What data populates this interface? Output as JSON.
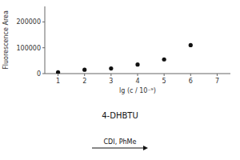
{
  "chart_data": {
    "type": "scatter",
    "x": [
      1,
      2,
      3,
      4,
      5,
      6
    ],
    "values": [
      5000,
      15000,
      20000,
      35000,
      55000,
      110000
    ],
    "xlabel": "lg (c / 10⁻⁹)",
    "ylabel": "Fluorescence Area",
    "xlim": [
      0.5,
      7.5
    ],
    "ylim": [
      0,
      260000
    ],
    "xticks": [
      1,
      2,
      3,
      4,
      5,
      6,
      7
    ],
    "yticks": [
      0,
      100000,
      200000
    ],
    "color": "#111111",
    "annotations": [
      "4-DHBTU",
      "CDI, PhMe"
    ]
  }
}
